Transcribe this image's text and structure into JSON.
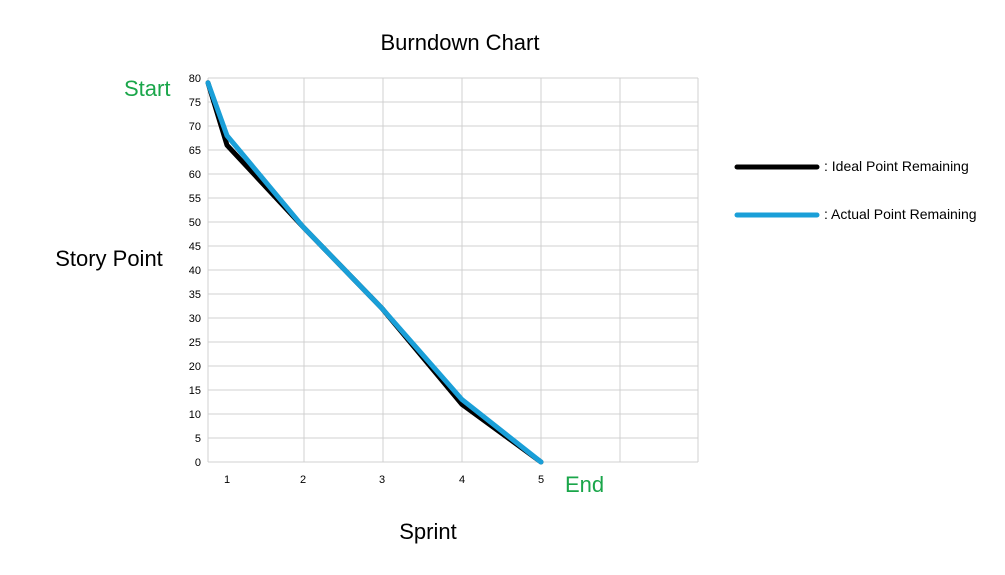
{
  "chart_data": {
    "type": "line",
    "title": "Burndown Chart",
    "xlabel": "Sprint",
    "ylabel": "Story Point",
    "x_ticks": [
      "1",
      "2",
      "3",
      "4",
      "5"
    ],
    "y_ticks": [
      "0",
      "5",
      "10",
      "15",
      "20",
      "25",
      "30",
      "35",
      "40",
      "45",
      "50",
      "55",
      "60",
      "65",
      "70",
      "75",
      "80"
    ],
    "ylim": [
      0,
      80
    ],
    "start_label": "Start",
    "end_label": "End",
    "grid": true,
    "legend_position": "right",
    "series": [
      {
        "name": ": Ideal Point Remaining",
        "color": "#000000",
        "points": [
          [
            0.75,
            79
          ],
          [
            1,
            66
          ],
          [
            2,
            49
          ],
          [
            3,
            32
          ],
          [
            4,
            12
          ],
          [
            5,
            0
          ]
        ]
      },
      {
        "name": ": Actual Point Remaining",
        "color": "#1a9fd8",
        "points": [
          [
            0.75,
            79
          ],
          [
            1,
            68
          ],
          [
            2,
            49
          ],
          [
            3,
            32
          ],
          [
            4,
            13
          ],
          [
            5,
            0
          ]
        ]
      }
    ]
  }
}
